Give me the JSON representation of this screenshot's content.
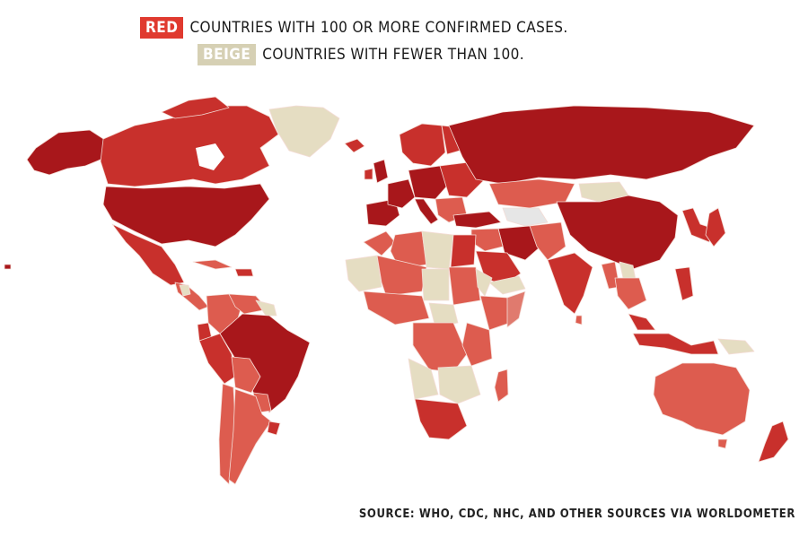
{
  "legend": {
    "red_label": "RED",
    "red_text": "COUNTRIES WITH 100 OR MORE CONFIRMED CASES.",
    "beige_label": "BEIGE",
    "beige_text": "COUNTRIES WITH FEWER THAN 100."
  },
  "source": "SOURCE: WHO, CDC, NHC, AND OTHER SOURCES VIA WORLDOMETER",
  "colors": {
    "red_swatch": "#e03a2f",
    "beige_swatch": "#d6d0b4",
    "dark_red": "#a8171b",
    "mid_red": "#c8302c",
    "light_red": "#dd5c4f",
    "beige": "#e5ddc2",
    "no_data": "#e6e6e6",
    "border": "#f3d6cf"
  }
}
